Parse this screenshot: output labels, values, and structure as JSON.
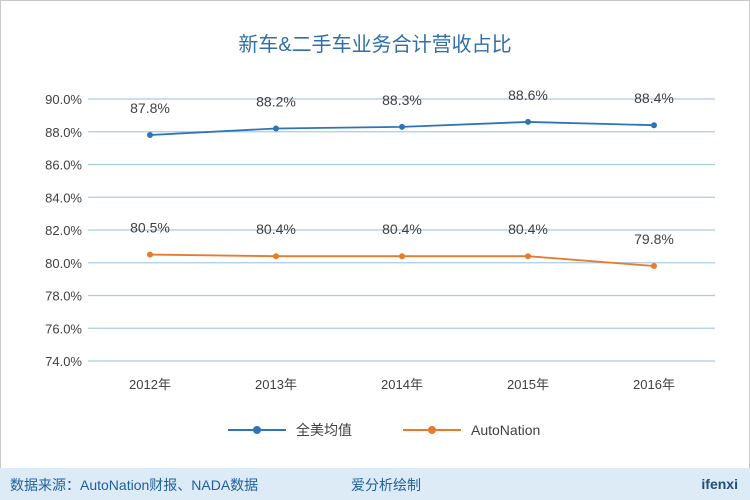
{
  "chart_data": {
    "type": "line",
    "title": "新车&二手车业务合计营收占比",
    "categories": [
      "2012年",
      "2013年",
      "2014年",
      "2015年",
      "2016年"
    ],
    "series": [
      {
        "name": "全美均值",
        "color": "#2e75b6",
        "values": [
          87.8,
          88.2,
          88.3,
          88.6,
          88.4
        ],
        "labels": [
          "87.8%",
          "88.2%",
          "88.3%",
          "88.6%",
          "88.4%"
        ]
      },
      {
        "name": "AutoNation",
        "color": "#e97a2b",
        "values": [
          80.5,
          80.4,
          80.4,
          80.4,
          79.8
        ],
        "labels": [
          "80.5%",
          "80.4%",
          "80.4%",
          "80.4%",
          "79.8%"
        ]
      }
    ],
    "ylim": [
      74,
      90
    ],
    "yticks": [
      "74.0%",
      "76.0%",
      "78.0%",
      "80.0%",
      "82.0%",
      "84.0%",
      "86.0%",
      "88.0%",
      "90.0%"
    ],
    "grid": true,
    "legend": "bottom"
  },
  "footer": {
    "source": "数据来源：AutoNation财报、NADA数据",
    "credit": "爱分析绘制",
    "brand": "ifenxi"
  }
}
